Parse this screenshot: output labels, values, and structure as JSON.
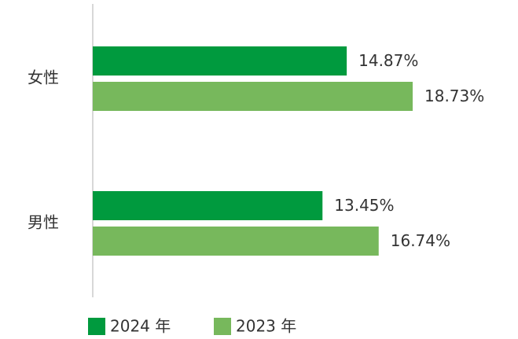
{
  "chart_data": {
    "type": "barh",
    "categories": [
      "女性",
      "男性"
    ],
    "series": [
      {
        "name": "2024 年",
        "color": "#009a3e",
        "values": [
          14.87,
          13.45
        ],
        "value_labels": [
          "14.87%",
          "13.45%"
        ]
      },
      {
        "name": "2023 年",
        "color": "#77b85c",
        "values": [
          18.73,
          16.74
        ],
        "value_labels": [
          "18.73%",
          "16.74%"
        ]
      }
    ],
    "legend": "bottom"
  }
}
